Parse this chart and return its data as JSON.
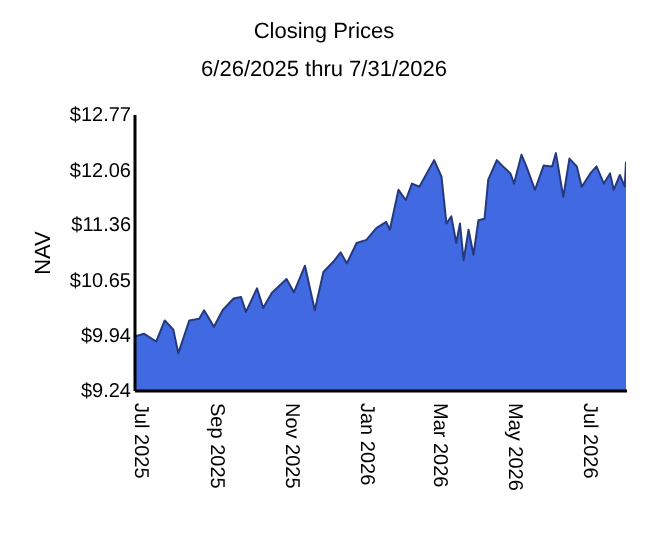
{
  "chart_data": {
    "type": "area",
    "title": "Closing Prices",
    "subtitle": "6/26/2025 thru 7/31/2026",
    "ylabel": "NAV",
    "x": [
      "2025-06-26",
      "2025-07-04",
      "2025-07-14",
      "2025-07-21",
      "2025-07-28",
      "2025-08-01",
      "2025-08-10",
      "2025-08-18",
      "2025-08-22",
      "2025-08-30",
      "2025-09-06",
      "2025-09-15",
      "2025-09-21",
      "2025-09-25",
      "2025-10-04",
      "2025-10-09",
      "2025-10-16",
      "2025-10-28",
      "2025-11-03",
      "2025-11-12",
      "2025-11-20",
      "2025-11-27",
      "2025-12-05",
      "2025-12-11",
      "2025-12-16",
      "2025-12-24",
      "2026-01-01",
      "2026-01-09",
      "2026-01-17",
      "2026-01-20",
      "2026-01-27",
      "2026-02-02",
      "2026-02-07",
      "2026-02-13",
      "2026-02-25",
      "2026-03-03",
      "2026-03-07",
      "2026-03-11",
      "2026-03-15",
      "2026-03-18",
      "2026-03-21",
      "2026-03-25",
      "2026-03-29",
      "2026-04-02",
      "2026-04-07",
      "2026-04-10",
      "2026-04-17",
      "2026-04-22",
      "2026-04-28",
      "2026-05-01",
      "2026-05-07",
      "2026-05-11",
      "2026-05-18",
      "2026-05-25",
      "2026-06-01",
      "2026-06-04",
      "2026-06-10",
      "2026-06-15",
      "2026-06-21",
      "2026-06-25",
      "2026-07-02",
      "2026-07-07",
      "2026-07-13",
      "2026-07-18",
      "2026-07-21",
      "2026-07-26",
      "2026-07-30",
      "2026-07-31"
    ],
    "series": [
      {
        "color": "#4169e1",
        "values": [
          9.92,
          9.96,
          9.86,
          10.13,
          10.01,
          9.71,
          10.13,
          10.15,
          10.26,
          10.05,
          10.26,
          10.41,
          10.43,
          10.24,
          10.54,
          10.29,
          10.48,
          10.66,
          10.49,
          10.83,
          10.26,
          10.75,
          10.88,
          11.0,
          10.86,
          11.12,
          11.16,
          11.31,
          11.39,
          11.29,
          11.8,
          11.67,
          11.88,
          11.84,
          12.18,
          11.97,
          11.37,
          11.46,
          11.12,
          11.37,
          10.9,
          11.29,
          10.97,
          11.41,
          11.43,
          11.93,
          12.18,
          12.1,
          12.01,
          11.88,
          12.25,
          12.1,
          11.8,
          12.11,
          12.1,
          12.27,
          11.71,
          12.2,
          12.1,
          11.84,
          12.01,
          12.1,
          11.88,
          12.01,
          11.8,
          11.99,
          11.84,
          12.16
        ]
      }
    ],
    "xlim": [
      "2025-06-26",
      "2026-07-31"
    ],
    "xticks": [
      {
        "value": "2025-07-01",
        "label": "Jul 2025"
      },
      {
        "value": "2025-09-01",
        "label": "Sep 2025"
      },
      {
        "value": "2025-11-01",
        "label": "Nov 2025"
      },
      {
        "value": "2026-01-01",
        "label": "Jan 2026"
      },
      {
        "value": "2026-03-01",
        "label": "Mar 2026"
      },
      {
        "value": "2026-05-01",
        "label": "May 2026"
      },
      {
        "value": "2026-07-01",
        "label": "Jul 2026"
      }
    ],
    "ylim": [
      9.24,
      12.77
    ],
    "yticks": [
      {
        "value": 9.24,
        "label": "$9.24"
      },
      {
        "value": 9.94,
        "label": "$9.94"
      },
      {
        "value": 10.65,
        "label": "$10.65"
      },
      {
        "value": 11.36,
        "label": "$11.36"
      },
      {
        "value": 12.06,
        "label": "$12.06"
      },
      {
        "value": 12.77,
        "label": "$12.77"
      }
    ]
  }
}
